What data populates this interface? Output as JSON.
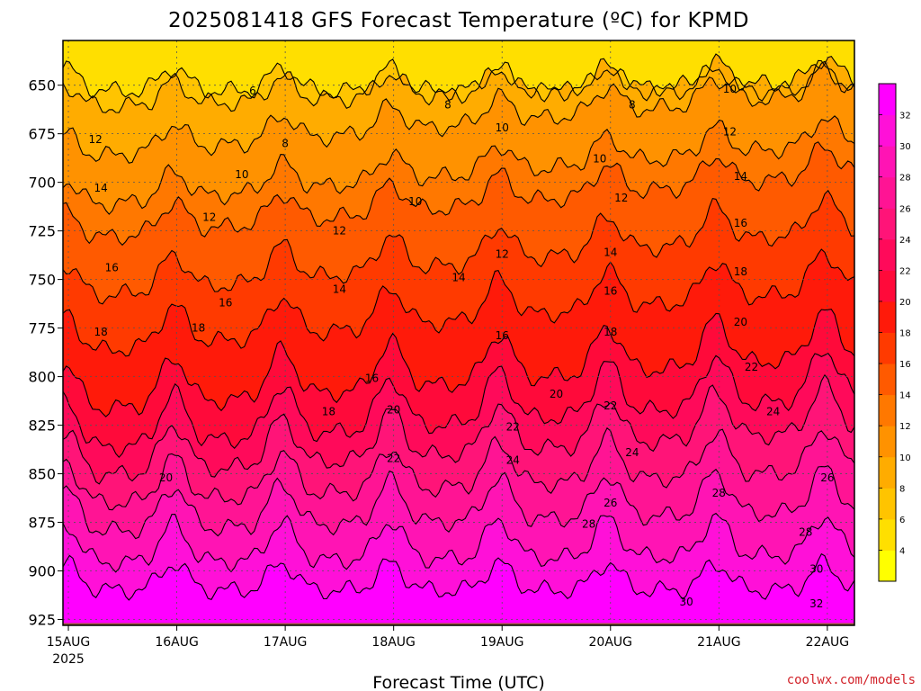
{
  "chart_data": {
    "type": "heatmap",
    "title": "2025081418 GFS Forecast Temperature (ºC) for KPMD",
    "xlabel": "Forecast Time (UTC)",
    "ylabel": "",
    "credit": "coolwx.com/models",
    "x_ticks": [
      {
        "day": 0,
        "label": "15AUG",
        "sublabel": "2025"
      },
      {
        "day": 1,
        "label": "16AUG"
      },
      {
        "day": 2,
        "label": "17AUG"
      },
      {
        "day": 3,
        "label": "18AUG"
      },
      {
        "day": 4,
        "label": "19AUG"
      },
      {
        "day": 5,
        "label": "20AUG"
      },
      {
        "day": 6,
        "label": "21AUG"
      },
      {
        "day": 7,
        "label": "22AUG"
      }
    ],
    "xlim_days": [
      -0.05,
      7.25
    ],
    "y_axis": {
      "unit": "hPa",
      "reversed": true,
      "ylim": [
        928,
        627
      ],
      "ticks": [
        650,
        675,
        700,
        725,
        750,
        775,
        800,
        825,
        850,
        875,
        900,
        925
      ]
    },
    "grid": true,
    "surface_level_hpa": 925,
    "colorbar": {
      "levels": [
        4,
        6,
        8,
        10,
        12,
        14,
        16,
        18,
        20,
        22,
        24,
        26,
        28,
        30,
        32
      ],
      "colors": [
        "#ffff00",
        "#ffdf00",
        "#ffc400",
        "#ffac00",
        "#ff9200",
        "#ff7800",
        "#ff5a00",
        "#ff3a00",
        "#ff1a0a",
        "#ff0a3a",
        "#ff0a5a",
        "#ff1478",
        "#ff1494",
        "#ff14b4",
        "#ff10d8",
        "#ff00ff"
      ]
    },
    "isotherms": [
      {
        "value": 6,
        "base_p": 653,
        "slope": 0,
        "amp": 12,
        "label_positions": [
          [
            1.7,
            653
          ]
        ]
      },
      {
        "value": 8,
        "base_p": 662,
        "slope": -2.0,
        "amp": 12,
        "label_positions": [
          [
            2.0,
            680
          ],
          [
            3.5,
            660
          ],
          [
            5.2,
            660
          ]
        ]
      },
      {
        "value": 10,
        "base_p": 688,
        "slope": -4.8,
        "amp": 13,
        "label_positions": [
          [
            1.6,
            696
          ],
          [
            3.2,
            710
          ],
          [
            4.0,
            672
          ],
          [
            4.9,
            688
          ],
          [
            6.1,
            652
          ]
        ]
      },
      {
        "value": 12,
        "base_p": 713,
        "slope": -4.6,
        "amp": 14,
        "label_positions": [
          [
            0.25,
            678
          ],
          [
            1.3,
            718
          ],
          [
            2.5,
            725
          ],
          [
            4.0,
            737
          ],
          [
            5.1,
            708
          ],
          [
            6.1,
            674
          ]
        ]
      },
      {
        "value": 14,
        "base_p": 730,
        "slope": -4.8,
        "amp": 15,
        "label_positions": [
          [
            0.3,
            703
          ],
          [
            2.5,
            755
          ],
          [
            3.6,
            749
          ],
          [
            5.0,
            736
          ],
          [
            6.2,
            697
          ]
        ]
      },
      {
        "value": 16,
        "base_p": 760,
        "slope": -4.9,
        "amp": 18,
        "label_positions": [
          [
            0.4,
            744
          ],
          [
            1.45,
            762
          ],
          [
            2.8,
            801
          ],
          [
            4.0,
            779
          ],
          [
            5.0,
            756
          ],
          [
            6.2,
            721
          ]
        ]
      },
      {
        "value": 18,
        "base_p": 788,
        "slope": -4.6,
        "amp": 20,
        "label_positions": [
          [
            0.3,
            777
          ],
          [
            1.2,
            775
          ],
          [
            2.4,
            818
          ],
          [
            5.0,
            777
          ],
          [
            6.2,
            746
          ]
        ]
      },
      {
        "value": 20,
        "base_p": 818,
        "slope": -4.0,
        "amp": 24,
        "label_positions": [
          [
            0.9,
            852
          ],
          [
            3.0,
            817
          ],
          [
            4.5,
            809
          ],
          [
            6.2,
            772
          ]
        ]
      },
      {
        "value": 22,
        "base_p": 838,
        "slope": -3.8,
        "amp": 26,
        "label_positions": [
          [
            3.0,
            842
          ],
          [
            4.1,
            826
          ],
          [
            5.0,
            815
          ],
          [
            6.3,
            795
          ]
        ]
      },
      {
        "value": 24,
        "base_p": 852,
        "slope": -3.4,
        "amp": 24,
        "label_positions": [
          [
            4.1,
            843
          ],
          [
            5.2,
            839
          ],
          [
            6.5,
            818
          ]
        ]
      },
      {
        "value": 26,
        "base_p": 866,
        "slope": -2.5,
        "amp": 22,
        "label_positions": [
          [
            5.0,
            865
          ],
          [
            7.0,
            852
          ]
        ]
      },
      {
        "value": 28,
        "base_p": 880,
        "slope": -1.5,
        "amp": 22,
        "label_positions": [
          [
            4.8,
            876
          ],
          [
            6.0,
            860
          ],
          [
            6.8,
            880
          ]
        ]
      },
      {
        "value": 30,
        "base_p": 896,
        "slope": -0.6,
        "amp": 20,
        "label_positions": [
          [
            5.7,
            916
          ],
          [
            6.9,
            899
          ]
        ]
      },
      {
        "value": 32,
        "base_p": 910,
        "slope": 0,
        "amp": 14,
        "label_positions": [
          [
            6.9,
            917
          ]
        ]
      }
    ]
  }
}
